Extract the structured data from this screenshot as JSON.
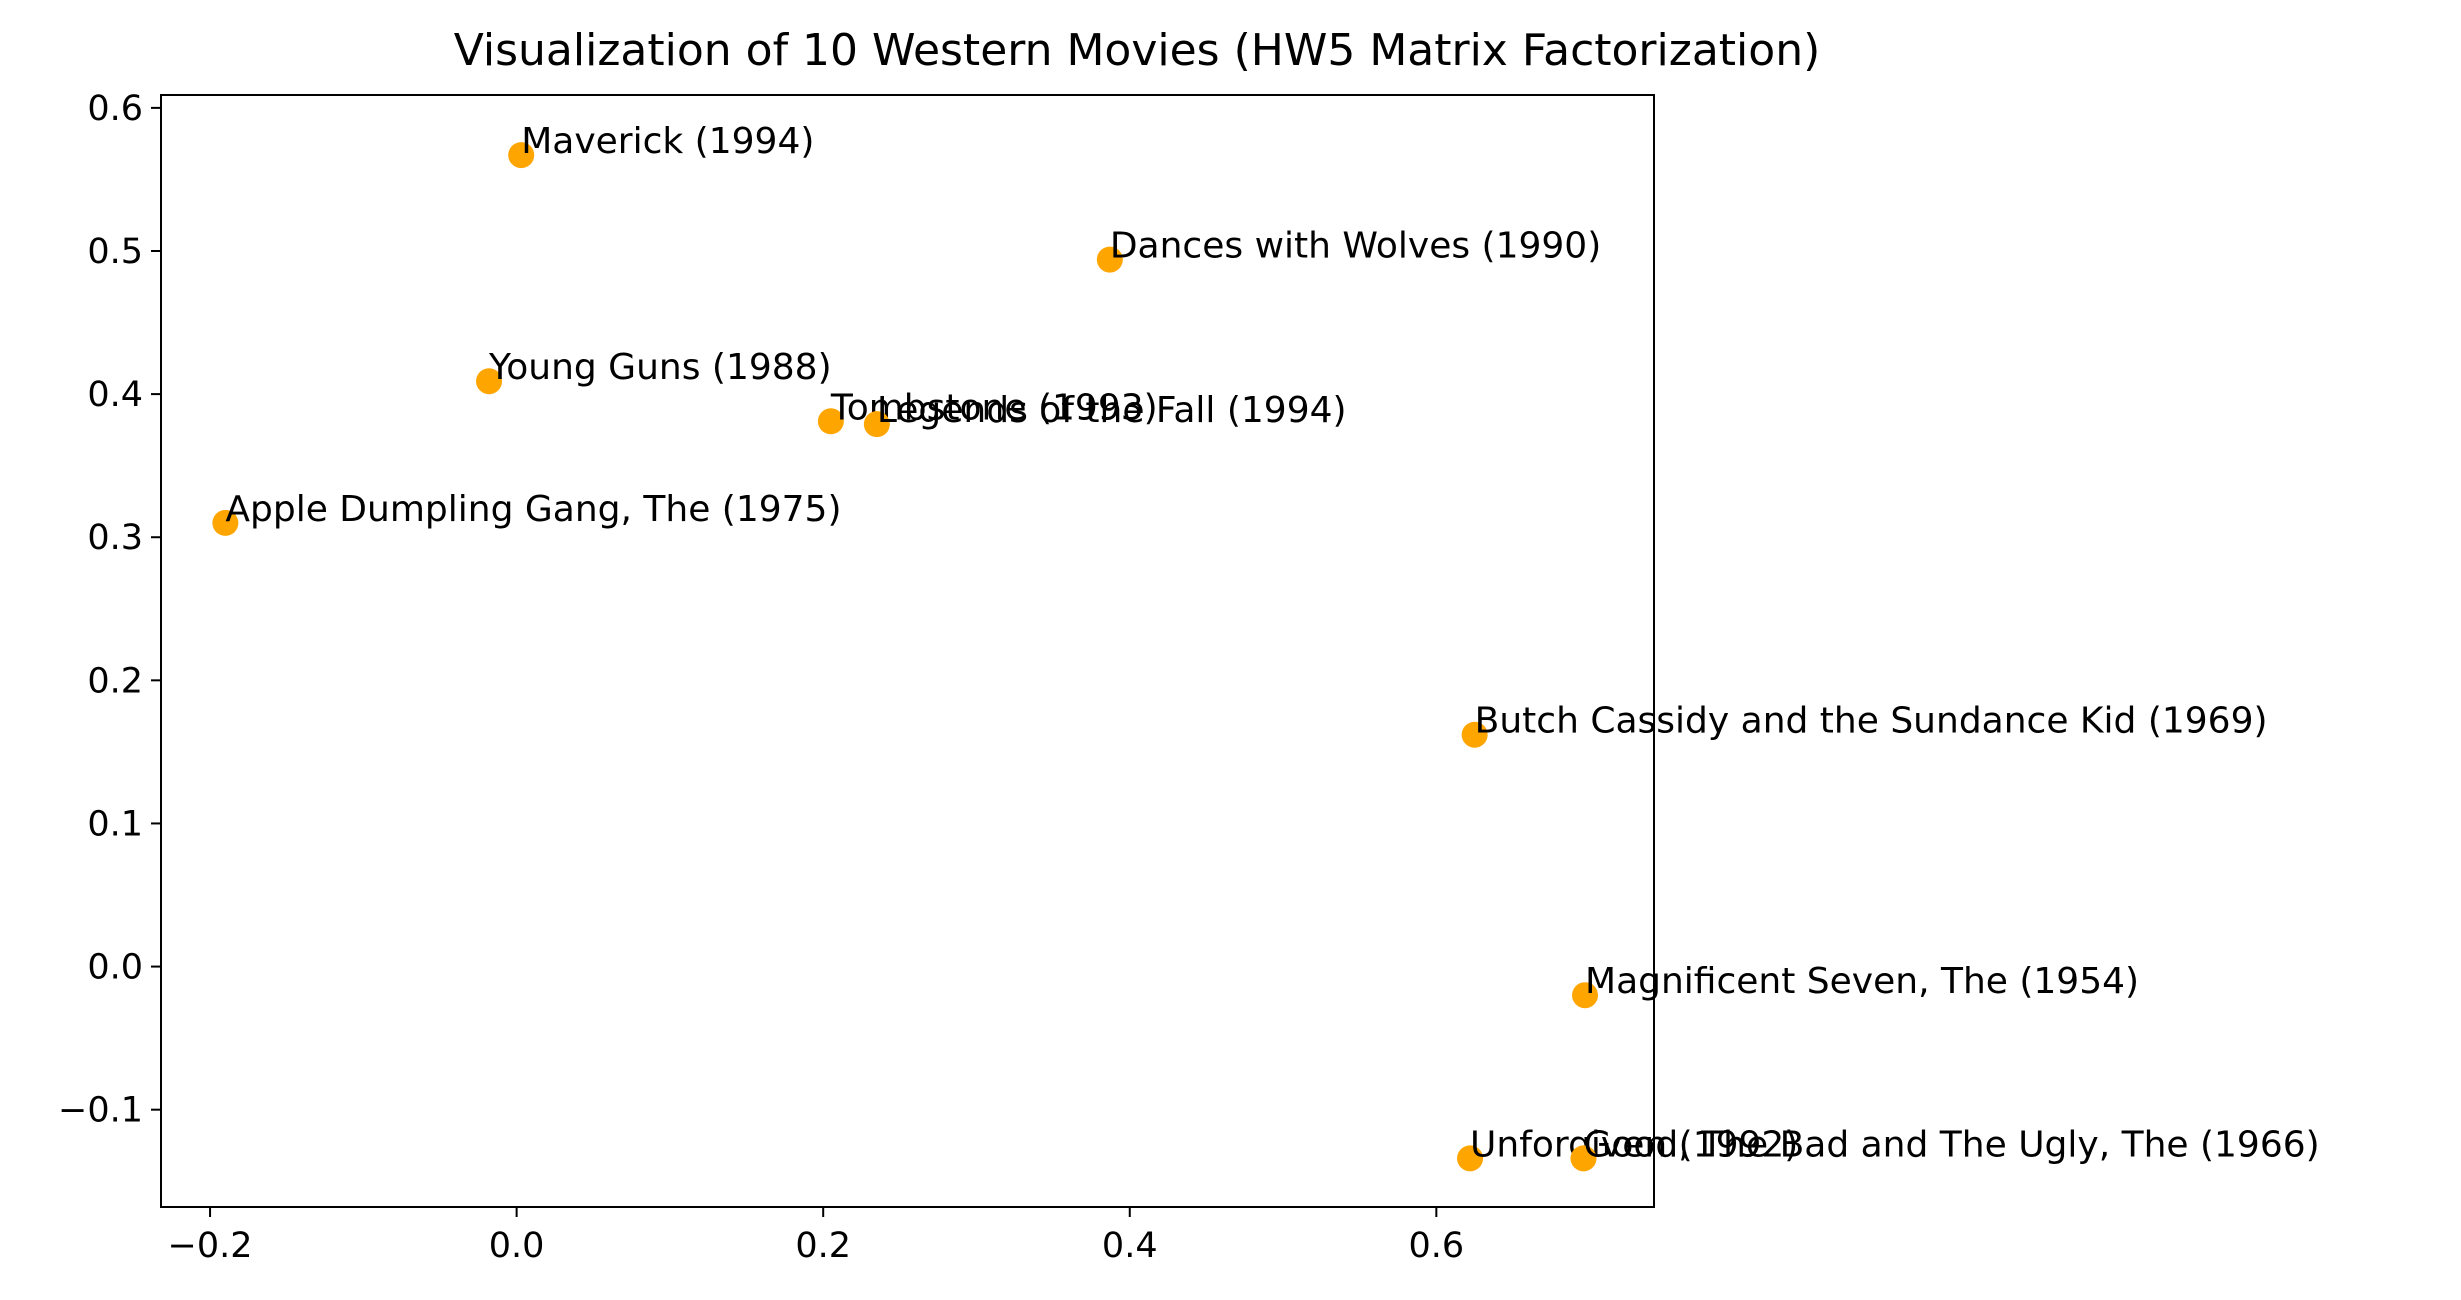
{
  "chart_data": {
    "type": "scatter",
    "title": "Visualization of 10 Western Movies (HW5 Matrix Factorization)",
    "xlabel": "",
    "ylabel": "",
    "xlim": [
      -0.232,
      0.742
    ],
    "ylim": [
      -0.168,
      0.609
    ],
    "xticks": [
      -0.2,
      0.0,
      0.2,
      0.4,
      0.6
    ],
    "xtick_labels": [
      "−0.2",
      "0.0",
      "0.2",
      "0.4",
      "0.6"
    ],
    "yticks": [
      -0.1,
      0.0,
      0.1,
      0.2,
      0.3,
      0.4,
      0.5,
      0.6
    ],
    "ytick_labels": [
      "−0.1",
      "0.0",
      "0.1",
      "0.2",
      "0.3",
      "0.4",
      "0.5",
      "0.6"
    ],
    "grid": false,
    "marker_color": "#FFA500",
    "points": [
      {
        "label": "Maverick (1994)",
        "x": 0.003,
        "y": 0.567
      },
      {
        "label": "Dances with Wolves (1990)",
        "x": 0.387,
        "y": 0.494
      },
      {
        "label": "Young Guns (1988)",
        "x": -0.018,
        "y": 0.409
      },
      {
        "label": "Tombstone (1993)",
        "x": 0.205,
        "y": 0.381
      },
      {
        "label": "Legends of the Fall (1994)",
        "x": 0.235,
        "y": 0.379
      },
      {
        "label": "Apple Dumpling Gang, The (1975)",
        "x": -0.19,
        "y": 0.31
      },
      {
        "label": "Butch Cassidy and the Sundance Kid (1969)",
        "x": 0.625,
        "y": 0.162
      },
      {
        "label": "Magnificent Seven, The (1954)",
        "x": 0.697,
        "y": -0.02
      },
      {
        "label": "Unforgiven (1992)",
        "x": 0.622,
        "y": -0.134
      },
      {
        "label": "Good, The Bad and The Ugly, The (1966)",
        "x": 0.696,
        "y": -0.134
      }
    ]
  }
}
